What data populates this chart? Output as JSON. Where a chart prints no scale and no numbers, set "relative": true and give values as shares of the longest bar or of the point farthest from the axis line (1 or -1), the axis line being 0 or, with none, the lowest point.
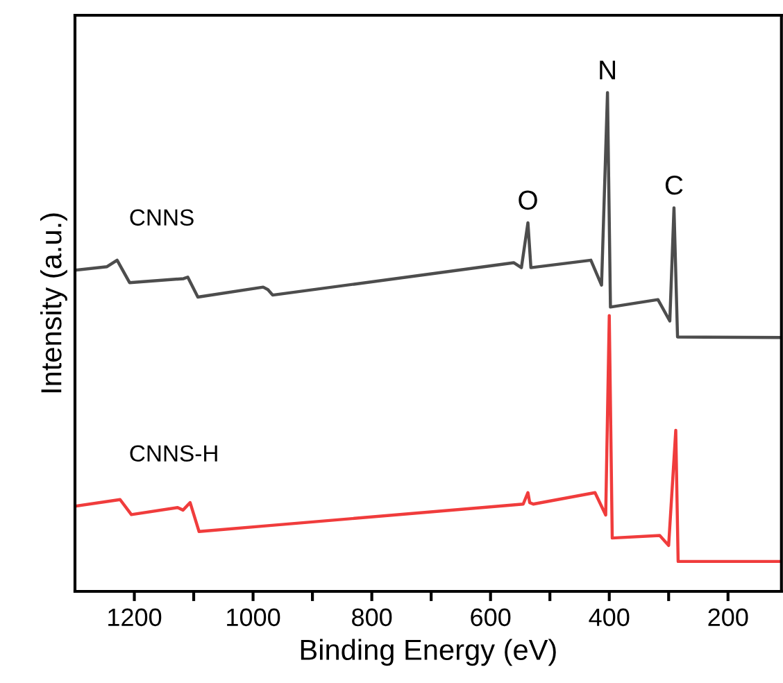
{
  "chart_data": {
    "type": "line",
    "xlabel": "Binding Energy (eV)",
    "ylabel": "Intensity (a.u.)",
    "relative": true,
    "xlim": [
      1300,
      110
    ],
    "xticks": [
      1200,
      {
        "value": 1100,
        "label": null
      },
      1000,
      {
        "value": 900,
        "label": null
      },
      800,
      {
        "value": 700,
        "label": null
      },
      600,
      {
        "value": 500,
        "label": null
      },
      400,
      {
        "value": 300,
        "label": null
      },
      200
    ],
    "series": [
      {
        "name": "CNNS",
        "color": "#4d4d4d",
        "x": [
          1299,
          1246,
          1229,
          1208,
          1117,
          1110,
          1093,
          983,
          975,
          967,
          561,
          548,
          537,
          532,
          431,
          413,
          403,
          398,
          318,
          298,
          291,
          285,
          110
        ],
        "values": [
          0.644,
          0.651,
          0.664,
          0.619,
          0.627,
          0.63,
          0.59,
          0.61,
          0.605,
          0.594,
          0.659,
          0.649,
          0.739,
          0.649,
          0.664,
          0.614,
          1.0,
          0.57,
          0.585,
          0.542,
          0.769,
          0.51,
          0.509
        ]
      },
      {
        "name": "CNNS-H",
        "color": "#f03c3c",
        "x": [
          1299,
          1224,
          1205,
          1127,
          1118,
          1106,
          1091,
          972,
          545,
          537,
          534,
          528,
          424,
          406,
          400,
          395,
          315,
          300,
          288,
          284,
          110
        ],
        "values": [
          0.171,
          0.184,
          0.154,
          0.168,
          0.163,
          0.178,
          0.12,
          0.132,
          0.175,
          0.198,
          0.178,
          0.175,
          0.198,
          0.153,
          0.553,
          0.107,
          0.112,
          0.092,
          0.323,
          0.06,
          0.06
        ]
      }
    ],
    "annotations": [
      {
        "text": "O",
        "x": 537,
        "y": 0.739
      },
      {
        "text": "N",
        "x": 403,
        "y": 1.0
      },
      {
        "text": "C",
        "x": 291,
        "y": 0.769
      }
    ],
    "grid": false,
    "legend": false
  }
}
